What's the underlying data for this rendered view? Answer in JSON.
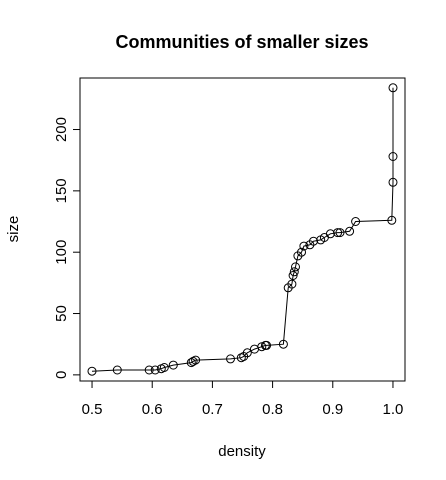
{
  "chart_data": {
    "type": "line",
    "title": "Communities of smaller sizes",
    "xlabel": "density",
    "ylabel": "size",
    "xlim": [
      0.48,
      1.02
    ],
    "ylim": [
      -5,
      242
    ],
    "x_ticks": [
      0.5,
      0.6,
      0.7,
      0.8,
      0.9,
      1.0
    ],
    "x_tick_labels": [
      "0.5",
      "0.6",
      "0.7",
      "0.8",
      "0.9",
      "1.0"
    ],
    "y_ticks": [
      0,
      50,
      100,
      150,
      200
    ],
    "y_tick_labels": [
      "0",
      "50",
      "100",
      "150",
      "200"
    ],
    "grid": false,
    "legend": "none",
    "series": [
      {
        "x": [
          0.5,
          0.542,
          0.595,
          0.605,
          0.615,
          0.62,
          0.635,
          0.665,
          0.668,
          0.672,
          0.73,
          0.748,
          0.752,
          0.758,
          0.77,
          0.782,
          0.788,
          0.79,
          0.818,
          0.826,
          0.832,
          0.834,
          0.836,
          0.838,
          0.842,
          0.848,
          0.852,
          0.862,
          0.868,
          0.88,
          0.886,
          0.896,
          0.908,
          0.912,
          0.928,
          0.938,
          0.998,
          1.0,
          1.0,
          1.0
        ],
        "y": [
          3,
          4,
          4,
          4,
          5,
          6,
          8,
          10,
          11,
          12,
          13,
          14,
          15,
          18,
          21,
          23,
          24,
          24,
          25,
          71,
          74,
          81,
          84,
          88,
          97,
          100,
          105,
          106,
          109,
          110,
          112,
          115,
          116,
          116,
          117,
          125,
          126,
          157,
          178,
          234
        ]
      }
    ]
  }
}
